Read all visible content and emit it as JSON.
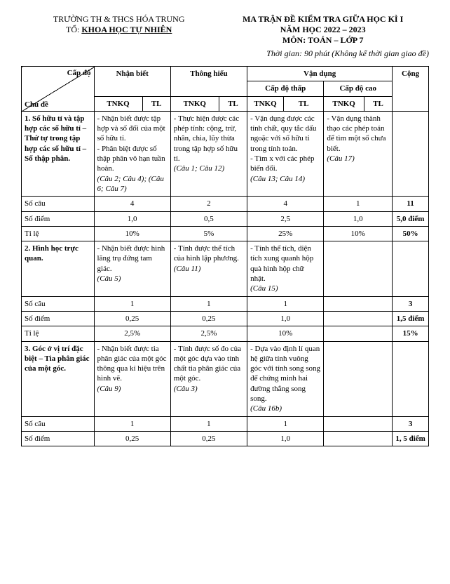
{
  "header": {
    "school": "TRƯỜNG TH & THCS HÓA TRUNG",
    "dept_prefix": "TỔ: ",
    "dept": "KHOA HỌC TỰ NHIÊN",
    "title": "MA TRẬN ĐỀ KIỂM TRA GIỮA HỌC KÌ I",
    "year": "NĂM HỌC 2022 – 2023",
    "subject": "MÔN: TOÁN – LỚP 7",
    "time": "Thời gian: 90 phút (Không kể thời gian giao đề)"
  },
  "cols": {
    "level": "Cấp độ",
    "topic": "Chủ đề",
    "nhanbiet": "Nhận biết",
    "thonghieu": "Thông hiểu",
    "vandung": "Vận dụng",
    "capdothap": "Cấp độ thấp",
    "capdocao": "Cấp độ cao",
    "cong": "Cộng",
    "tnkq": "TNKQ",
    "tl": "TL"
  },
  "row_labels": {
    "socau": "Số câu",
    "sodiem": "Số điểm",
    "tile": "Tỉ lệ"
  },
  "topics": [
    {
      "title": "1.  Số hữu tỉ và tập hợp các số hữu tỉ – Thứ tự trong tập hợp các số hữu tỉ – Số thập phân.",
      "nb": "- Nhận biết được tập hợp và số đối của một số hữu tỉ.\n- Phân biệt được số thập phân vô hạn tuần hoàn.",
      "nb_ref": "(Câu 2; Câu 4); (Câu 6; Câu 7)",
      "th": "- Thực hiện được các phép tính: cộng, trừ, nhân, chia, lũy thừa trong tập hợp số hữu tỉ.",
      "th_ref": "(Câu 1; Câu 12)",
      "vdt": "-  Vận dụng được các tính chất, quy tắc dấu ngoặc với số hữu tỉ trong tính toán.\n- Tìm x với các phép biến đổi.",
      "vdt_ref": "(Câu 13; Câu 14)",
      "vdc": "- Vận dụng thành thạo các phép toán để tìm một số chưa biết.",
      "vdc_ref": "(Câu 17)",
      "socau": {
        "nb": "4",
        "th": "2",
        "vdt": "4",
        "vdc": "1",
        "cong": "11"
      },
      "sodiem": {
        "nb": "1,0",
        "th": "0,5",
        "vdt": "2,5",
        "vdc": "1,0",
        "cong": "5,0 điểm"
      },
      "tile": {
        "nb": "10%",
        "th": "5%",
        "vdt": "25%",
        "vdc": "10%",
        "cong": "50%"
      }
    },
    {
      "title": "2.   Hình học trực quan.",
      "nb": "- Nhận biết được hình lăng trụ đứng tam giác.",
      "nb_ref": "(Câu 5)",
      "th": "-  Tính được thể tích của hình lập phương.",
      "th_ref": "(Câu 11)",
      "vdt": "- Tính thể tích, diện tích xung quanh hộp quà hình hộp chữ nhật.",
      "vdt_ref": "(Câu 15)",
      "vdc": "",
      "vdc_ref": "",
      "socau": {
        "nb": "1",
        "th": "1",
        "vdt": "1",
        "vdc": "",
        "cong": "3"
      },
      "sodiem": {
        "nb": "0,25",
        "th": "0,25",
        "vdt": "1,0",
        "vdc": "",
        "cong": "1,5 điểm"
      },
      "tile": {
        "nb": "2,5%",
        "th": "2,5%",
        "vdt": "10%",
        "vdc": "",
        "cong": "15%"
      }
    },
    {
      "title": "3. Góc ở vị trí đặc biệt – Tia phân giác của một góc.",
      "nb": "- Nhận biết được tia phân giác của một góc thông qua kí hiệu trên hình vẽ.",
      "nb_ref": "(Câu 9)",
      "th": "-  Tính được số đo của một góc dựa vào tính chất tia phân giác của một góc.",
      "th_ref": "(Câu 3)",
      "vdt": "-  Dựa vào định lí quan hệ giữa tính vuông góc với tính song song để chứng minh hai đường thẳng song song.",
      "vdt_ref": "(Câu 16b)",
      "vdc": "",
      "vdc_ref": "",
      "socau": {
        "nb": "1",
        "th": "1",
        "vdt": "1",
        "vdc": "",
        "cong": "3"
      },
      "sodiem": {
        "nb": "0,25",
        "th": "0,25",
        "vdt": "1,0",
        "vdc": "",
        "cong": "1, 5 điểm"
      }
    }
  ]
}
